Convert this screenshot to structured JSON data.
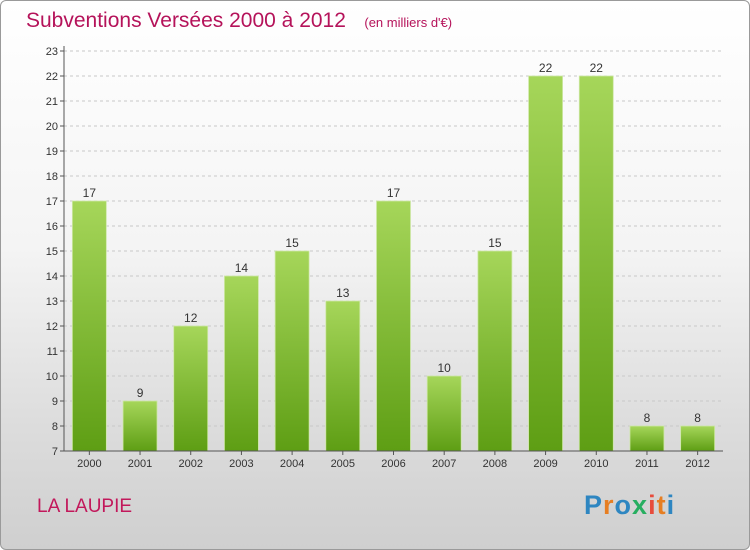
{
  "title": "Subventions Versées 2000 à 2012",
  "subtitle": "(en milliers d'€)",
  "commune": "LA LAUPIE",
  "logo": {
    "letters": [
      "P",
      "r",
      "o",
      "x",
      "i",
      "t",
      "i"
    ],
    "colors": [
      "#2e86c1",
      "#e67e22",
      "#2e86c1",
      "#27ae60",
      "#e74c3c",
      "#e67e22",
      "#2e86c1"
    ]
  },
  "colors": {
    "accent": "#b5135a",
    "bar_top": "#a6d65a",
    "bar_bottom": "#5e9e14"
  },
  "chart_data": {
    "type": "bar",
    "title": "Subventions Versées 2000 à 2012",
    "subtitle": "(en milliers d'€)",
    "categories": [
      "2000",
      "2001",
      "2002",
      "2003",
      "2004",
      "2005",
      "2006",
      "2007",
      "2008",
      "2009",
      "2010",
      "2011",
      "2012"
    ],
    "values": [
      17,
      9,
      12,
      14,
      15,
      13,
      17,
      10,
      15,
      22,
      22,
      8,
      8
    ],
    "yticks": [
      7,
      8,
      9,
      10,
      11,
      12,
      13,
      14,
      15,
      16,
      17,
      18,
      19,
      20,
      21,
      22,
      23
    ],
    "ylim": [
      7,
      23
    ],
    "grid": "horizontal dashed"
  }
}
